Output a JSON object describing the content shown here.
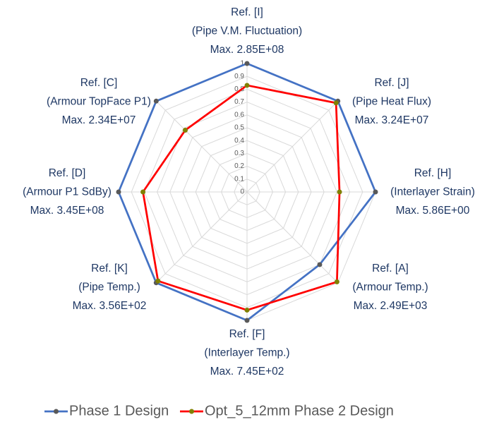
{
  "chart_data": {
    "type": "radar",
    "categories": [
      [
        "Ref. [I]",
        "(Pipe V.M. Fluctuation)",
        "Max. 2.85E+08"
      ],
      [
        "Ref. [J]",
        "(Pipe Heat Flux)",
        "Max. 3.24E+07"
      ],
      [
        "Ref. [H]",
        "(Interlayer Strain)",
        "Max. 5.86E+00"
      ],
      [
        "Ref. [A]",
        "(Armour Temp.)",
        "Max. 2.49E+03"
      ],
      [
        "Ref. [F]",
        "(Interlayer Temp.)",
        "Max. 7.45E+02"
      ],
      [
        "Ref. [K]",
        "(Pipe Temp.)",
        "Max. 3.56E+02"
      ],
      [
        "Ref. [D]",
        "(Armour P1 SdBy)",
        "Max. 3.45E+08"
      ],
      [
        "Ref. [C]",
        "(Armour TopFace P1)",
        "Max. 2.34E+07"
      ]
    ],
    "series": [
      {
        "name": "Phase 1 Design",
        "color": "#4472c4",
        "marker_color": "#595959",
        "values": [
          1,
          1,
          1,
          0.8,
          1,
          1,
          1,
          1
        ]
      },
      {
        "name": "Opt_5_12mm Phase 2 Design",
        "color": "#ff0000",
        "marker_color": "#808000",
        "values": [
          0.83,
          0.98,
          0.72,
          0.99,
          0.92,
          0.98,
          0.81,
          0.68
        ]
      }
    ],
    "rlim": [
      0,
      1
    ],
    "rticks": [
      0,
      0.1,
      0.2,
      0.3,
      0.4,
      0.5,
      0.6,
      0.7,
      0.8,
      0.9,
      1
    ],
    "grid": true,
    "legend": "bottom"
  }
}
